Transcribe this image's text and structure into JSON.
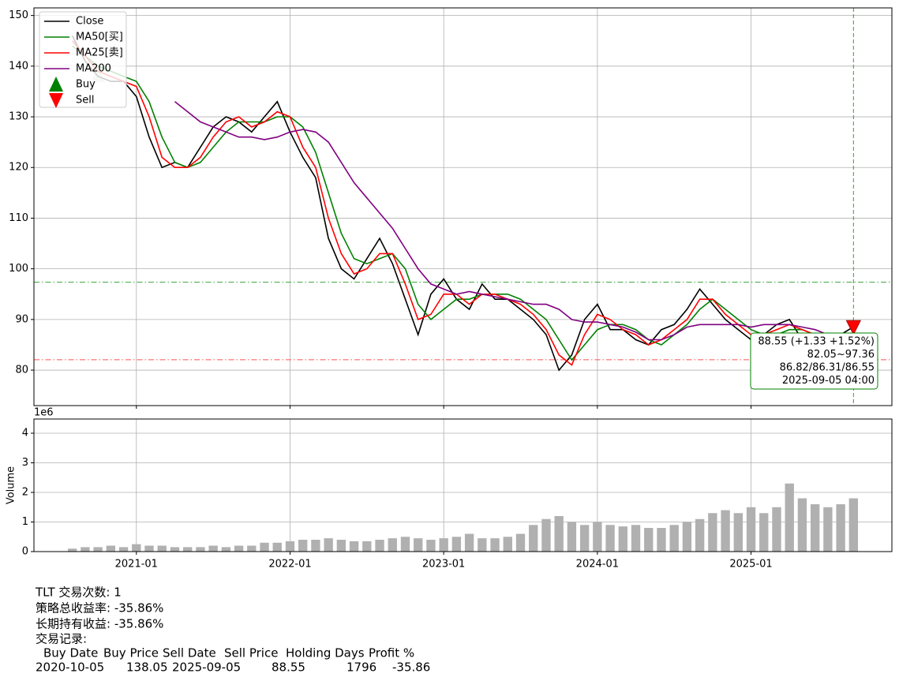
{
  "chart_data": [
    {
      "type": "line",
      "x": [
        "2020-08",
        "2020-09",
        "2020-10",
        "2020-11",
        "2020-12",
        "2021-01",
        "2021-02",
        "2021-03",
        "2021-04",
        "2021-05",
        "2021-06",
        "2021-07",
        "2021-08",
        "2021-09",
        "2021-10",
        "2021-11",
        "2021-12",
        "2022-01",
        "2022-02",
        "2022-03",
        "2022-04",
        "2022-05",
        "2022-06",
        "2022-07",
        "2022-08",
        "2022-09",
        "2022-10",
        "2022-11",
        "2022-12",
        "2023-01",
        "2023-02",
        "2023-03",
        "2023-04",
        "2023-05",
        "2023-06",
        "2023-07",
        "2023-08",
        "2023-09",
        "2023-10",
        "2023-11",
        "2023-12",
        "2024-01",
        "2024-02",
        "2024-03",
        "2024-04",
        "2024-05",
        "2024-06",
        "2024-07",
        "2024-08",
        "2024-09",
        "2024-10",
        "2024-11",
        "2024-12",
        "2025-01",
        "2025-02",
        "2025-03",
        "2025-04",
        "2025-05",
        "2025-06",
        "2025-07",
        "2025-08",
        "2025-09"
      ],
      "xlim": [
        "2020-05",
        "2025-12"
      ],
      "xticks": [
        "2021-01",
        "2022-01",
        "2023-01",
        "2024-01",
        "2025-01"
      ],
      "ylim": [
        73,
        151.5
      ],
      "yticks": [
        80,
        90,
        100,
        110,
        120,
        130,
        140,
        150
      ],
      "grid": true,
      "legend": "upper left",
      "series": [
        {
          "name": "Close",
          "color": "#000000",
          "values": [
            146,
            141,
            138,
            137,
            137,
            134,
            126,
            120,
            121,
            120,
            124,
            128,
            130,
            129,
            127,
            130,
            133,
            127,
            122,
            118,
            106,
            100,
            98,
            102,
            106,
            101,
            94,
            87,
            95,
            98,
            94,
            92,
            97,
            94,
            94,
            92,
            90,
            87,
            80,
            83,
            90,
            93,
            88,
            88,
            86,
            85,
            88,
            89,
            92,
            96,
            93,
            90,
            88,
            86,
            87,
            89,
            90,
            86,
            86,
            86,
            87,
            88.55
          ]
        },
        {
          "name": "MA50[买]",
          "color": "#008000",
          "values": [
            144,
            142,
            140,
            139,
            138,
            137,
            133,
            126,
            121,
            120,
            121,
            124,
            127,
            129,
            129,
            129,
            130,
            130,
            128,
            123,
            115,
            107,
            102,
            101,
            102,
            103,
            100,
            93,
            90,
            92,
            94,
            94,
            95,
            95,
            95,
            94,
            92,
            90,
            86,
            82,
            85,
            88,
            89,
            89,
            88,
            86,
            85,
            87,
            89,
            92,
            94,
            92,
            90,
            88,
            87,
            87,
            88,
            88,
            87,
            87,
            86,
            86.31
          ]
        },
        {
          "name": "MA25[卖]",
          "color": "#ff0000",
          "values": [
            145,
            142,
            139,
            138,
            137,
            136,
            130,
            122,
            120,
            120,
            122,
            126,
            129,
            130,
            128,
            129,
            131,
            130,
            124,
            120,
            110,
            103,
            99,
            100,
            103,
            103,
            97,
            90,
            91,
            95,
            95,
            93,
            95,
            95,
            94,
            93,
            91,
            88,
            83,
            81,
            87,
            91,
            90,
            88,
            87,
            85,
            86,
            88,
            90,
            94,
            94,
            91,
            89,
            87,
            87,
            88,
            89,
            88,
            87,
            86,
            86,
            86.82
          ]
        },
        {
          "name": "MA200",
          "color": "#800080",
          "values": [
            null,
            null,
            null,
            null,
            null,
            null,
            null,
            null,
            133,
            131,
            129,
            128,
            127,
            126,
            126,
            125.5,
            126,
            127,
            127.5,
            127,
            125,
            121,
            117,
            114,
            111,
            108,
            104,
            100,
            97,
            96,
            95,
            95.5,
            95,
            94.5,
            94,
            93.5,
            93,
            93,
            92,
            90,
            89.5,
            89.5,
            89,
            88.5,
            87.5,
            86,
            86,
            87,
            88.5,
            89,
            89,
            89,
            89,
            88.5,
            89,
            89,
            89,
            88.5,
            88,
            87,
            86.5,
            86.55
          ]
        }
      ],
      "markers": [
        {
          "name": "Buy",
          "x": "2020-10",
          "value": 138.05,
          "color": "#008000"
        },
        {
          "name": "Sell",
          "x": "2025-09",
          "value": 88.55,
          "color": "#ff0000"
        }
      ],
      "hlines": [
        {
          "value": 97.36,
          "color": "#3aa63a"
        },
        {
          "value": 82.05,
          "color": "#ff5050"
        }
      ],
      "vline": {
        "x": "2025-09",
        "color": "#3a9a3a"
      },
      "annotation": [
        "88.55 (+1.33 +1.52%)",
        "82.05~97.36",
        "86.82/86.31/86.55",
        "2025-09-05 04:00"
      ]
    },
    {
      "type": "bar",
      "ylabel": "Volume",
      "offset_label": "1e6",
      "x": [
        "2020-08",
        "2020-09",
        "2020-10",
        "2020-11",
        "2020-12",
        "2021-01",
        "2021-02",
        "2021-03",
        "2021-04",
        "2021-05",
        "2021-06",
        "2021-07",
        "2021-08",
        "2021-09",
        "2021-10",
        "2021-11",
        "2021-12",
        "2022-01",
        "2022-02",
        "2022-03",
        "2022-04",
        "2022-05",
        "2022-06",
        "2022-07",
        "2022-08",
        "2022-09",
        "2022-10",
        "2022-11",
        "2022-12",
        "2023-01",
        "2023-02",
        "2023-03",
        "2023-04",
        "2023-05",
        "2023-06",
        "2023-07",
        "2023-08",
        "2023-09",
        "2023-10",
        "2023-11",
        "2023-12",
        "2024-01",
        "2024-02",
        "2024-03",
        "2024-04",
        "2024-05",
        "2024-06",
        "2024-07",
        "2024-08",
        "2024-09",
        "2024-10",
        "2024-11",
        "2024-12",
        "2025-01",
        "2025-02",
        "2025-03",
        "2025-04",
        "2025-05",
        "2025-06",
        "2025-07",
        "2025-08",
        "2025-09"
      ],
      "xlim": [
        "2020-05",
        "2025-12"
      ],
      "xticks": [
        "2021-01",
        "2022-01",
        "2023-01",
        "2024-01",
        "2025-01"
      ],
      "ylim": [
        0,
        4.48
      ],
      "yticks": [
        0,
        1,
        2,
        3,
        4
      ],
      "grid": true,
      "color": "#b0b0b0",
      "values": [
        0.1,
        0.15,
        0.15,
        0.2,
        0.15,
        0.25,
        0.2,
        0.2,
        0.15,
        0.15,
        0.15,
        0.2,
        0.15,
        0.2,
        0.2,
        0.3,
        0.3,
        0.35,
        0.4,
        0.4,
        0.45,
        0.4,
        0.35,
        0.35,
        0.4,
        0.45,
        0.5,
        0.45,
        0.4,
        0.45,
        0.5,
        0.6,
        0.45,
        0.45,
        0.5,
        0.6,
        0.9,
        1.1,
        1.2,
        1.0,
        0.9,
        1.0,
        0.9,
        0.85,
        0.9,
        0.8,
        0.8,
        0.9,
        1.0,
        1.1,
        1.3,
        1.4,
        1.3,
        1.5,
        1.3,
        1.5,
        2.3,
        1.8,
        1.6,
        1.5,
        1.6,
        1.8
      ]
    }
  ],
  "report": {
    "lines": [
      "TLT 交易次数: 1",
      "策略总收益率: -35.86%",
      "长期持有收益: -35.86%",
      "交易记录:"
    ],
    "table": {
      "header": [
        "Buy Date",
        "Buy Price",
        "Sell Date",
        "Sell Price",
        "Holding Days",
        "Profit %"
      ],
      "rows": [
        [
          "2020-10-05",
          138.05,
          "2025-09-05",
          88.55,
          1796,
          -35.86
        ]
      ]
    }
  }
}
